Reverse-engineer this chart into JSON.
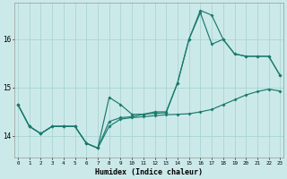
{
  "xlabel": "Humidex (Indice chaleur)",
  "background_color": "#cce9e9",
  "grid_color": "#aad4d4",
  "line_color": "#1a7a6e",
  "x_ticks": [
    0,
    1,
    2,
    3,
    4,
    5,
    6,
    7,
    8,
    9,
    10,
    11,
    12,
    13,
    14,
    15,
    16,
    17,
    18,
    19,
    20,
    21,
    22,
    23
  ],
  "y_ticks": [
    14,
    15,
    16
  ],
  "ylim": [
    13.55,
    16.75
  ],
  "xlim": [
    -0.3,
    23.3
  ],
  "line1_y": [
    14.65,
    14.2,
    14.05,
    14.2,
    14.2,
    14.2,
    13.85,
    13.75,
    14.2,
    14.35,
    14.38,
    14.4,
    14.42,
    14.44,
    14.45,
    14.46,
    14.5,
    14.55,
    14.65,
    14.75,
    14.85,
    14.92,
    14.97,
    14.93
  ],
  "line2_y": [
    14.65,
    14.2,
    14.05,
    14.2,
    14.2,
    14.2,
    13.85,
    13.75,
    14.8,
    14.65,
    14.45,
    14.45,
    14.5,
    14.5,
    15.1,
    16.0,
    16.6,
    16.5,
    16.0,
    15.7,
    15.65,
    15.65,
    15.65,
    15.25
  ],
  "line3_y": [
    14.65,
    14.2,
    14.05,
    14.2,
    14.2,
    14.2,
    13.85,
    13.75,
    14.3,
    14.38,
    14.4,
    14.45,
    14.47,
    14.48,
    15.1,
    16.0,
    16.55,
    15.9,
    16.0,
    15.7,
    15.65,
    15.65,
    15.65,
    15.25
  ]
}
